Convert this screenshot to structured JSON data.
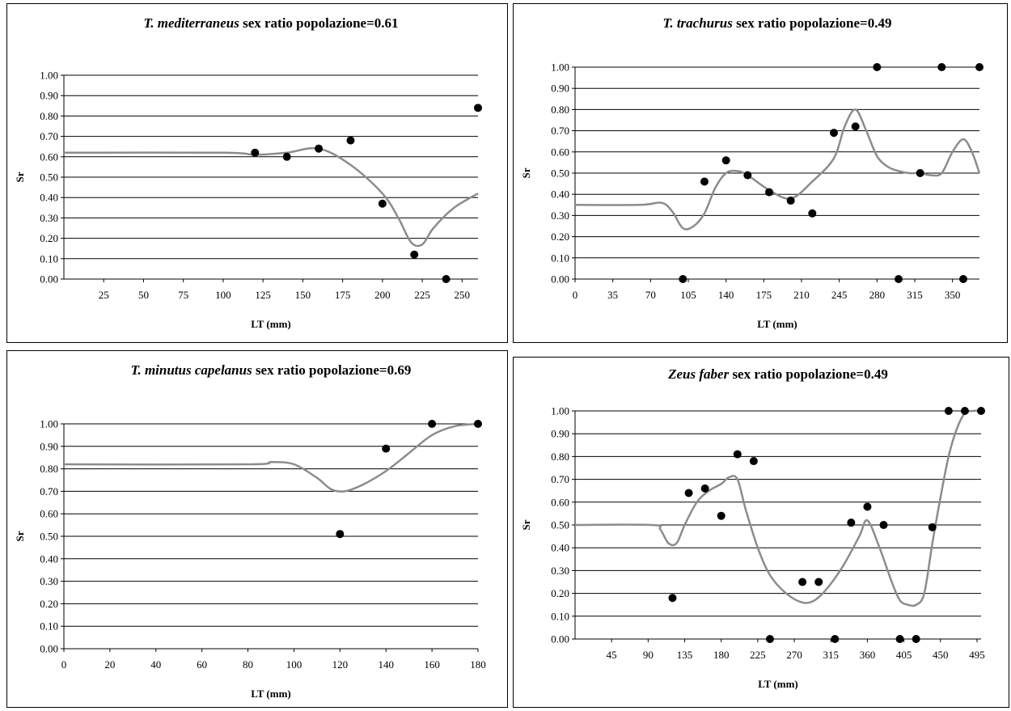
{
  "chart_data": [
    {
      "type": "scatter",
      "title": {
        "species": "T. mediterraneus",
        "rest": " sex ratio popolazione=0.61"
      },
      "xlabel": "LT (mm)",
      "ylabel": "Sr",
      "xlim": [
        0,
        260
      ],
      "ylim": [
        0,
        1
      ],
      "xticks": [
        25,
        50,
        75,
        100,
        125,
        150,
        175,
        200,
        225,
        250
      ],
      "yticks": [
        0,
        0.1,
        0.2,
        0.3,
        0.4,
        0.5,
        0.6,
        0.7,
        0.8,
        0.9,
        1
      ],
      "grid": true,
      "points": {
        "x": [
          120,
          140,
          160,
          180,
          200,
          220,
          240,
          260
        ],
        "y": [
          0.62,
          0.6,
          0.64,
          0.68,
          0.37,
          0.12,
          0.0,
          0.84
        ]
      },
      "curve": {
        "x": [
          0,
          100,
          120,
          140,
          160,
          180,
          200,
          210,
          218,
          225,
          232,
          245,
          260
        ],
        "y": [
          0.62,
          0.62,
          0.61,
          0.62,
          0.64,
          0.56,
          0.42,
          0.3,
          0.18,
          0.17,
          0.25,
          0.35,
          0.42
        ]
      }
    },
    {
      "type": "scatter",
      "title": {
        "species": "T. trachurus",
        "rest": " sex ratio popolazione=0.49"
      },
      "xlabel": "LT (mm)",
      "ylabel": "Sr",
      "xlim": [
        0,
        375
      ],
      "ylim": [
        0,
        1
      ],
      "xticks": [
        0,
        35,
        70,
        105,
        140,
        175,
        210,
        245,
        280,
        315,
        350
      ],
      "yticks": [
        0,
        0.1,
        0.2,
        0.3,
        0.4,
        0.5,
        0.6,
        0.7,
        0.8,
        0.9,
        1
      ],
      "grid": true,
      "points": {
        "x": [
          100,
          120,
          140,
          160,
          180,
          200,
          220,
          240,
          260,
          280,
          300,
          320,
          340,
          360,
          375
        ],
        "y": [
          0.0,
          0.46,
          0.56,
          0.49,
          0.41,
          0.37,
          0.31,
          0.69,
          0.72,
          1.0,
          0.0,
          0.5,
          1.0,
          0.0,
          1.0
        ]
      },
      "curve": {
        "x": [
          0,
          60,
          80,
          90,
          100,
          110,
          120,
          130,
          140,
          150,
          160,
          180,
          200,
          220,
          240,
          250,
          260,
          270,
          280,
          290,
          300,
          310,
          320,
          330,
          340,
          350,
          360,
          368,
          375
        ],
        "y": [
          0.35,
          0.35,
          0.36,
          0.32,
          0.24,
          0.25,
          0.31,
          0.43,
          0.5,
          0.51,
          0.49,
          0.42,
          0.38,
          0.46,
          0.57,
          0.72,
          0.8,
          0.7,
          0.58,
          0.53,
          0.51,
          0.5,
          0.5,
          0.49,
          0.5,
          0.6,
          0.66,
          0.6,
          0.5
        ]
      }
    },
    {
      "type": "scatter",
      "title": {
        "species": "T. minutus capelanus",
        "rest": " sex ratio popolazione=0.69"
      },
      "xlabel": "LT (mm)",
      "ylabel": "Sr",
      "xlim": [
        0,
        180
      ],
      "ylim": [
        0,
        1
      ],
      "xticks": [
        0,
        20,
        40,
        60,
        80,
        100,
        120,
        140,
        160,
        180
      ],
      "yticks": [
        0,
        0.1,
        0.2,
        0.3,
        0.4,
        0.5,
        0.6,
        0.7,
        0.8,
        0.9,
        1
      ],
      "grid": true,
      "points": {
        "x": [
          120,
          140,
          160,
          180
        ],
        "y": [
          0.51,
          0.89,
          1.0,
          1.0
        ]
      },
      "curve": {
        "x": [
          0,
          80,
          90,
          100,
          110,
          116,
          122,
          130,
          140,
          150,
          160,
          170,
          180
        ],
        "y": [
          0.82,
          0.82,
          0.83,
          0.82,
          0.76,
          0.71,
          0.7,
          0.73,
          0.79,
          0.87,
          0.95,
          0.99,
          1.0
        ]
      }
    },
    {
      "type": "scatter",
      "title": {
        "species": "Zeus faber",
        "rest": " sex ratio popolazione=0.49"
      },
      "xlabel": "LT (mm)",
      "ylabel": "Sr",
      "xlim": [
        0,
        500
      ],
      "ylim": [
        0,
        1
      ],
      "xticks": [
        45,
        90,
        135,
        180,
        225,
        270,
        315,
        360,
        405,
        450,
        495
      ],
      "yticks": [
        0,
        0.1,
        0.2,
        0.3,
        0.4,
        0.5,
        0.6,
        0.7,
        0.8,
        0.9,
        1
      ],
      "grid": true,
      "points": {
        "x": [
          120,
          140,
          160,
          180,
          200,
          220,
          240,
          280,
          300,
          320,
          340,
          360,
          380,
          400,
          420,
          440,
          460,
          480,
          500
        ],
        "y": [
          0.18,
          0.64,
          0.66,
          0.54,
          0.81,
          0.78,
          0.0,
          0.25,
          0.25,
          0.0,
          0.51,
          0.58,
          0.5,
          0.0,
          0.0,
          0.49,
          1.0,
          1.0,
          1.0
        ]
      },
      "curve": {
        "x": [
          0,
          95,
          105,
          115,
          125,
          135,
          150,
          165,
          180,
          190,
          200,
          210,
          225,
          240,
          260,
          280,
          295,
          310,
          330,
          350,
          360,
          375,
          390,
          400,
          410,
          420,
          430,
          440,
          450,
          460,
          470,
          480,
          490,
          500
        ],
        "y": [
          0.5,
          0.5,
          0.48,
          0.42,
          0.42,
          0.5,
          0.6,
          0.65,
          0.68,
          0.71,
          0.7,
          0.57,
          0.4,
          0.28,
          0.2,
          0.16,
          0.17,
          0.22,
          0.32,
          0.45,
          0.52,
          0.4,
          0.25,
          0.17,
          0.15,
          0.15,
          0.2,
          0.42,
          0.62,
          0.8,
          0.92,
          0.99,
          1.0,
          1.0
        ]
      }
    }
  ]
}
